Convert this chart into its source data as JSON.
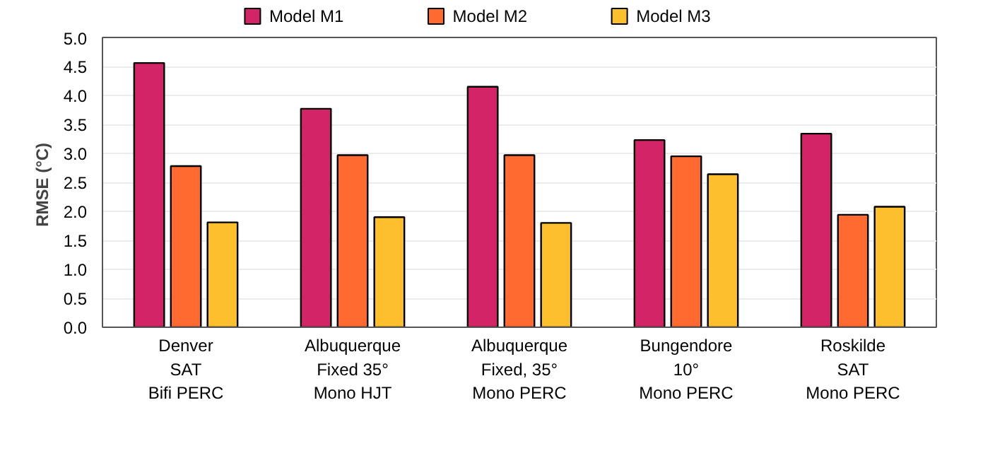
{
  "chart_data": {
    "type": "bar",
    "ylabel": "RMSE  (°C)",
    "categories": [
      "Denver\nSAT\nBifi PERC",
      "Albuquerque\nFixed 35°\nMono HJT",
      "Albuquerque\nFixed, 35°\nMono PERC",
      "Bungendore\n10°\nMono PERC",
      "Roskilde\nSAT\nMono PERC"
    ],
    "series": [
      {
        "name": "Model M1",
        "color": "#d42468",
        "values": [
          4.56,
          3.77,
          4.15,
          3.23,
          3.34
        ]
      },
      {
        "name": "Model M2",
        "color": "#ff6a30",
        "values": [
          2.78,
          2.97,
          2.97,
          2.95,
          1.94
        ]
      },
      {
        "name": "Model M3",
        "color": "#fdbf2d",
        "values": [
          1.81,
          1.9,
          1.8,
          2.64,
          2.08
        ]
      }
    ],
    "ylim": [
      0,
      5
    ],
    "yticks": [
      {
        "value": 0,
        "label": "0.0"
      },
      {
        "value": 0.5,
        "label": "0.5"
      },
      {
        "value": 1,
        "label": "1.0"
      },
      {
        "value": 1.5,
        "label": "1.5"
      },
      {
        "value": 2,
        "label": "2.0"
      },
      {
        "value": 2.5,
        "label": "2.5"
      },
      {
        "value": 3,
        "label": "3.0"
      },
      {
        "value": 3.5,
        "label": "3.5"
      },
      {
        "value": 4,
        "label": "4.0"
      },
      {
        "value": 4.5,
        "label": "4.5"
      },
      {
        "value": 5,
        "label": "5.0"
      }
    ],
    "grid": "y",
    "legend": "top"
  }
}
